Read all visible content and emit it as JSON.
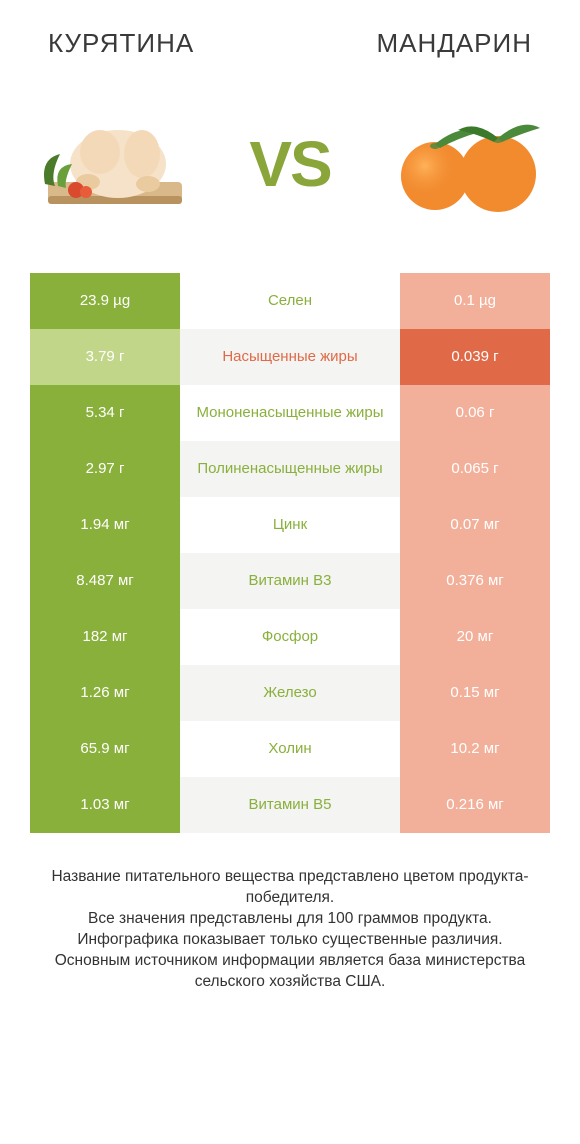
{
  "header": {
    "left_title": "КУРЯТИНА",
    "right_title": "MАНДАРИН"
  },
  "vs_label": "VS",
  "colors": {
    "left_win": "#8ab03c",
    "left_lose": "#c2d68a",
    "right_win": "#e06a47",
    "right_lose": "#f2b09a",
    "mid_left": "#8ab03c",
    "mid_right": "#e06a47",
    "row_bg_even": "#f4f4f2",
    "row_bg_odd": "#ffffff",
    "vs_color": "#8aa63a"
  },
  "rows": [
    {
      "left": "23.9 µg",
      "mid": "Селен",
      "right": "0.1 µg",
      "winner": "left"
    },
    {
      "left": "3.79 г",
      "mid": "Насыщенные жиры",
      "right": "0.039 г",
      "winner": "right"
    },
    {
      "left": "5.34 г",
      "mid": "Мононенасыщенные жиры",
      "right": "0.06 г",
      "winner": "left"
    },
    {
      "left": "2.97 г",
      "mid": "Полиненасыщенные жиры",
      "right": "0.065 г",
      "winner": "left"
    },
    {
      "left": "1.94 мг",
      "mid": "Цинк",
      "right": "0.07 мг",
      "winner": "left"
    },
    {
      "left": "8.487 мг",
      "mid": "Витамин B3",
      "right": "0.376 мг",
      "winner": "left"
    },
    {
      "left": "182 мг",
      "mid": "Фосфор",
      "right": "20 мг",
      "winner": "left"
    },
    {
      "left": "1.26 мг",
      "mid": "Железо",
      "right": "0.15 мг",
      "winner": "left"
    },
    {
      "left": "65.9 мг",
      "mid": "Холин",
      "right": "10.2 мг",
      "winner": "left"
    },
    {
      "left": "1.03 мг",
      "mid": "Витамин B5",
      "right": "0.216 мг",
      "winner": "left"
    }
  ],
  "footer": {
    "line1": "Название питательного вещества представлено цветом продукта-победителя.",
    "line2": "Все значения представлены для 100 граммов продукта.",
    "line3": "Инфографика показывает только существенные различия.",
    "line4": "Основным источником информации является база министерства сельского хозяйства США."
  }
}
